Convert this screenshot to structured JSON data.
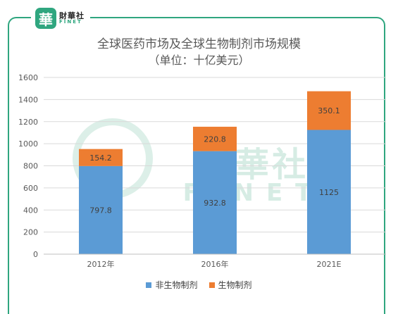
{
  "brand": {
    "badge_char": "華",
    "name_cn": "財華社",
    "name_en": "FINET",
    "watermark_cn": "財華社",
    "watermark_en": "FINET"
  },
  "chart_data": {
    "type": "bar",
    "stacked": true,
    "title": "全球医药市场及全球生物制剂市场规模",
    "subtitle": "（单位：十亿美元）",
    "categories": [
      "2012年",
      "2016年",
      "2021E"
    ],
    "series": [
      {
        "name": "非生物制剂",
        "values": [
          797.8,
          932.8,
          1125
        ],
        "labels": [
          "797.8",
          "932.8",
          "1125"
        ],
        "color": "#5b9bd5"
      },
      {
        "name": "生物制剂",
        "values": [
          154.2,
          220.8,
          350.1
        ],
        "labels": [
          "154.2",
          "220.8",
          "350.1"
        ],
        "color": "#ed7d31"
      }
    ],
    "ylim": [
      0,
      1600
    ],
    "yticks": [
      "0",
      "200",
      "400",
      "600",
      "800",
      "1000",
      "1200",
      "1400",
      "1600"
    ],
    "grid": true,
    "legend_position": "bottom"
  }
}
